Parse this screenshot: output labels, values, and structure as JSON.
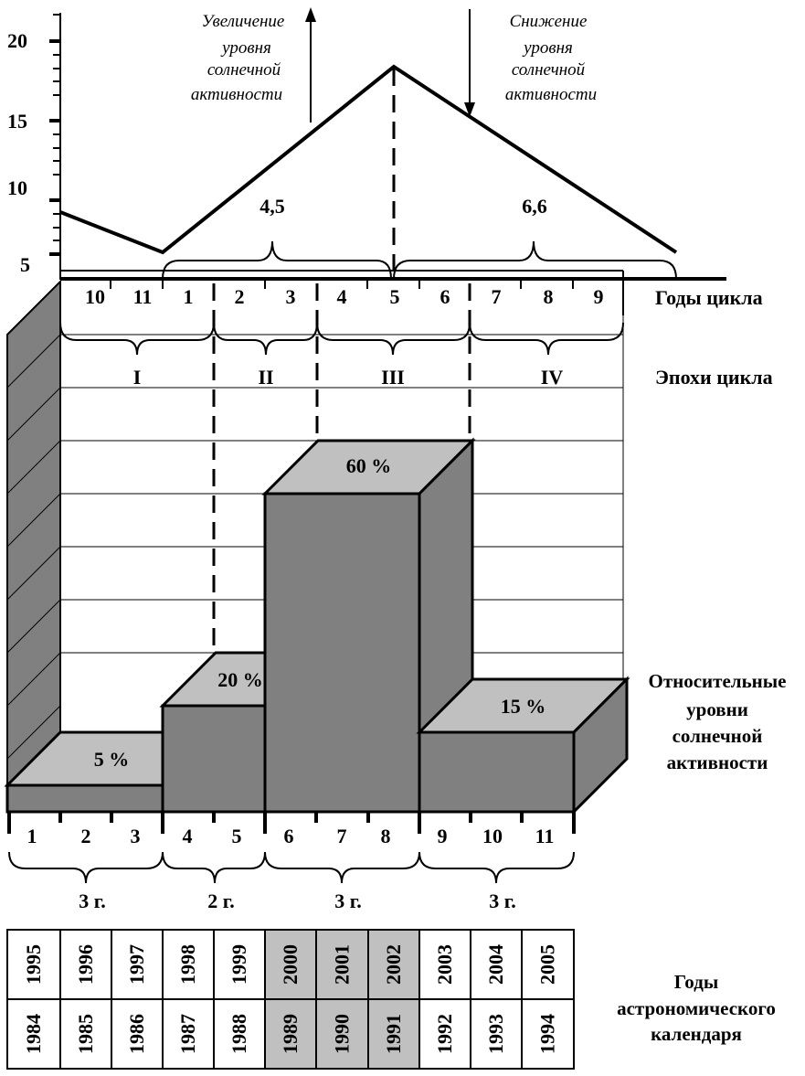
{
  "activity_chart": {
    "y_ticks": [
      "20",
      "15",
      "10",
      "5"
    ],
    "note_increase": [
      "Увеличение",
      "уровня",
      "солнечной",
      "активности"
    ],
    "note_decrease": [
      "Снижение",
      "уровня",
      "солнечной",
      "активности"
    ],
    "rise_duration": "4,5",
    "fall_duration": "6,6",
    "cycle_years": [
      "10",
      "11",
      "1",
      "2",
      "3",
      "4",
      "5",
      "6",
      "7",
      "8",
      "9"
    ],
    "cycle_years_label": "Годы цикла",
    "epochs": [
      "I",
      "II",
      "III",
      "IV"
    ],
    "epochs_label": "Эпохи цикла"
  },
  "levels_chart": {
    "bars": [
      {
        "epoch": "I",
        "value": 5,
        "label": "5 %"
      },
      {
        "epoch": "II",
        "value": 20,
        "label": "20 %"
      },
      {
        "epoch": "III",
        "value": 60,
        "label": "60 %"
      },
      {
        "epoch": "IV",
        "value": 15,
        "label": "15 %"
      }
    ],
    "title_lines": [
      "Относительные",
      "уровни",
      "солнечной",
      "активности"
    ],
    "bottom_years": [
      "1",
      "2",
      "3",
      "4",
      "5",
      "6",
      "7",
      "8",
      "9",
      "10",
      "11"
    ],
    "durations": [
      "3 г.",
      "2 г.",
      "3 г.",
      "3 г."
    ]
  },
  "calendar": {
    "row_top": [
      "1995",
      "1996",
      "1997",
      "1998",
      "1999",
      "2000",
      "2001",
      "2002",
      "2003",
      "2004",
      "2005"
    ],
    "row_bottom": [
      "1984",
      "1985",
      "1986",
      "1987",
      "1988",
      "1989",
      "1990",
      "1991",
      "1992",
      "1993",
      "1994"
    ],
    "highlight_color": "#c0c0c0",
    "label_lines": [
      "Годы",
      "астрономического",
      "календаря"
    ]
  },
  "colors": {
    "bar_front": "#808080",
    "bar_top": "#c0c0c0",
    "wall": "#808080",
    "ink": "#000000"
  }
}
